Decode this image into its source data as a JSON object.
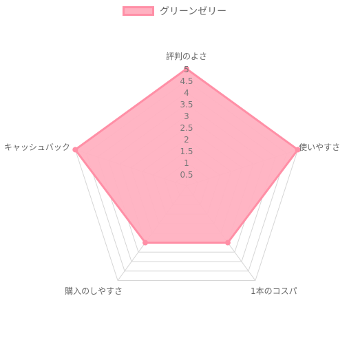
{
  "chart_data": {
    "type": "radar",
    "categories": [
      "評判のよさ",
      "使いやすさ",
      "1本のコスパ",
      "購入のしやすさ",
      "キャッシュバック"
    ],
    "series": [
      {
        "name": "グリーンゼリー",
        "values": [
          5,
          5,
          3,
          3,
          5
        ],
        "fill": "#ffb1c1",
        "stroke": "#ff8fa6"
      }
    ],
    "rlim": [
      0,
      5
    ],
    "ticks": [
      0.5,
      1,
      1.5,
      2,
      2.5,
      3,
      3.5,
      4,
      4.5,
      5
    ],
    "tick_labels": [
      "0.5",
      "1",
      "1.5",
      "2",
      "2.5",
      "3",
      "3.5",
      "4",
      "4.5",
      "5"
    ],
    "grid": true,
    "legend": "top"
  }
}
